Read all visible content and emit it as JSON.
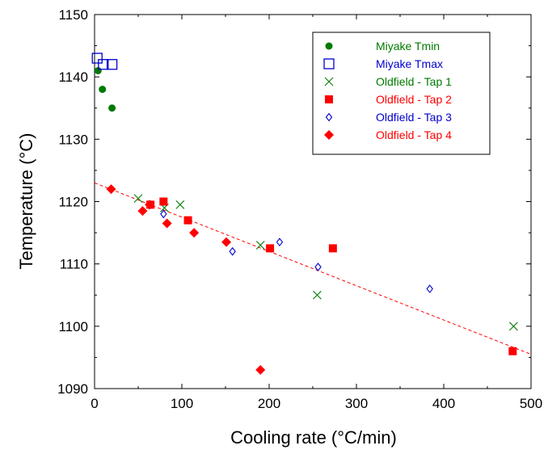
{
  "chart_data": {
    "type": "scatter",
    "title": "",
    "xlabel": "Cooling rate (°C/min)",
    "ylabel": "Temperature (°C)",
    "xlim": [
      0,
      500
    ],
    "ylim": [
      1090,
      1150
    ],
    "xticks": [
      0,
      100,
      200,
      300,
      400,
      500
    ],
    "yticks": [
      1090,
      1100,
      1110,
      1120,
      1130,
      1140,
      1150
    ],
    "grid": false,
    "legend_position": "top-right",
    "series": [
      {
        "name": "Miyake Tmin",
        "marker": "filled-circle",
        "color": "#007a00",
        "points": [
          [
            4,
            1141
          ],
          [
            9,
            1138
          ],
          [
            20,
            1135
          ]
        ]
      },
      {
        "name": "Miyake Tmax",
        "marker": "open-square",
        "color": "#0000cc",
        "points": [
          [
            3,
            1143
          ],
          [
            10,
            1142
          ],
          [
            20,
            1142
          ]
        ]
      },
      {
        "name": "Oldfield - Tap 1",
        "marker": "x",
        "color": "#007a00",
        "points": [
          [
            50,
            1120.5
          ],
          [
            80,
            1119
          ],
          [
            98,
            1119.5
          ],
          [
            190,
            1113
          ],
          [
            255,
            1105
          ],
          [
            480,
            1100
          ]
        ]
      },
      {
        "name": "Oldfield - Tap 2",
        "marker": "filled-square",
        "color": "#ff0000",
        "points": [
          [
            64,
            1119.5
          ],
          [
            79,
            1120
          ],
          [
            107,
            1117
          ],
          [
            201,
            1112.5
          ],
          [
            273,
            1112.5
          ],
          [
            479,
            1096
          ]
        ]
      },
      {
        "name": "Oldfield - Tap 3",
        "marker": "open-diamond",
        "color": "#0000cc",
        "points": [
          [
            64,
            1119.5
          ],
          [
            79,
            1118
          ],
          [
            158,
            1112
          ],
          [
            212,
            1113.5
          ],
          [
            256,
            1109.5
          ],
          [
            384,
            1106
          ]
        ]
      },
      {
        "name": "Oldfield - Tap 4",
        "marker": "filled-diamond",
        "color": "#ff0000",
        "points": [
          [
            19,
            1122
          ],
          [
            55,
            1118.5
          ],
          [
            63,
            1119.5
          ],
          [
            83,
            1116.5
          ],
          [
            114,
            1115
          ],
          [
            151,
            1113.5
          ],
          [
            190,
            1093
          ]
        ]
      }
    ],
    "trendline": {
      "style": "dashed",
      "color": "#ff0000",
      "x": [
        0,
        500
      ],
      "y": [
        1123,
        1095.5
      ]
    }
  }
}
